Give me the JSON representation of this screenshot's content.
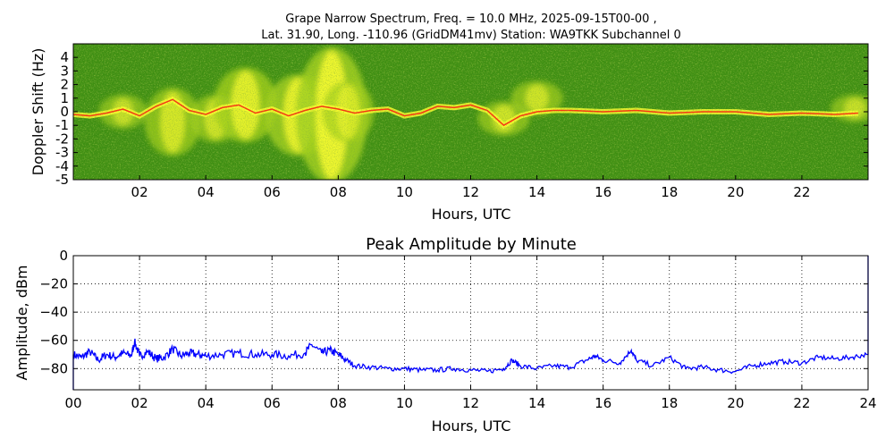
{
  "chart_data": [
    {
      "type": "heatmap",
      "title_line1": "Grape Narrow Spectrum, Freq. = 10.0 MHz, 2025-09-15T00-00 ,",
      "title_line2": "Lat.  31.90, Long. -110.96 (GridDM41mv) Station: WA9TKK Subchannel 0",
      "xlabel": "Hours, UTC",
      "ylabel": "Doppler Shift (Hz)",
      "xlim": [
        0,
        24
      ],
      "ylim": [
        -5,
        5
      ],
      "x_ticks": [
        "02",
        "04",
        "06",
        "08",
        "10",
        "12",
        "14",
        "16",
        "18",
        "20",
        "22"
      ],
      "y_ticks": [
        "4",
        "3",
        "2",
        "1",
        "0",
        "-1",
        "-2",
        "-3",
        "-4",
        "-5"
      ],
      "colors": {
        "background": "#3e8f12",
        "mid": "#a6d21d",
        "high": "#ffff30",
        "peak": "#ff3010"
      },
      "trace": {
        "hours": [
          0,
          0.5,
          1,
          1.5,
          2,
          2.5,
          3,
          3.5,
          4,
          4.5,
          5,
          5.5,
          6,
          6.5,
          7,
          7.5,
          8,
          8.5,
          9,
          9.5,
          10,
          10.5,
          11,
          11.5,
          12,
          12.5,
          13,
          13.5,
          14,
          14.5,
          15,
          16,
          17,
          18,
          19,
          20,
          21,
          22,
          23,
          23.7
        ],
        "doppler_hz": [
          -0.2,
          -0.3,
          -0.1,
          0.2,
          -0.3,
          0.4,
          0.9,
          0.1,
          -0.2,
          0.3,
          0.5,
          -0.1,
          0.2,
          -0.3,
          0.1,
          0.4,
          0.2,
          -0.1,
          0.1,
          0.2,
          -0.3,
          -0.1,
          0.4,
          0.3,
          0.5,
          0.1,
          -1.0,
          -0.3,
          0.0,
          0.1,
          0.1,
          0.0,
          0.1,
          -0.1,
          0.0,
          0.0,
          -0.2,
          -0.1,
          -0.2,
          -0.1
        ]
      },
      "disturbances": [
        {
          "hour": 1.5,
          "low_hz": -1,
          "high_hz": 1,
          "strength": 0.4
        },
        {
          "hour": 3.0,
          "low_hz": -3,
          "high_hz": 1.5,
          "strength": 0.6
        },
        {
          "hour": 4.3,
          "low_hz": -2,
          "high_hz": 1,
          "strength": 0.5
        },
        {
          "hour": 5.2,
          "low_hz": -2,
          "high_hz": 3,
          "strength": 0.8
        },
        {
          "hour": 6.8,
          "low_hz": -3,
          "high_hz": 2.5,
          "strength": 0.9
        },
        {
          "hour": 7.8,
          "low_hz": -5,
          "high_hz": 4.5,
          "strength": 1.0
        },
        {
          "hour": 8.3,
          "low_hz": -2,
          "high_hz": 2,
          "strength": 0.5
        },
        {
          "hour": 13.0,
          "low_hz": -1.5,
          "high_hz": 0.5,
          "strength": 0.5
        },
        {
          "hour": 14.0,
          "low_hz": 0,
          "high_hz": 2,
          "strength": 0.5
        },
        {
          "hour": 23.6,
          "low_hz": -0.5,
          "high_hz": 1,
          "strength": 0.4
        }
      ]
    },
    {
      "type": "line",
      "title": "Peak Amplitude by Minute",
      "xlabel": "Hours, UTC",
      "ylabel": "Amplitude, dBm",
      "xlim": [
        0,
        24
      ],
      "ylim": [
        -95,
        0
      ],
      "grid": true,
      "x_ticks": [
        "00",
        "02",
        "04",
        "06",
        "08",
        "10",
        "12",
        "14",
        "16",
        "18",
        "20",
        "22",
        "24"
      ],
      "y_ticks": [
        "0",
        "−20",
        "−40",
        "−60",
        "−80"
      ],
      "y_tick_values": [
        0,
        -20,
        -40,
        -60,
        -80
      ],
      "line_color": "#0000ff",
      "series": [
        {
          "x": [
            0,
            0.25,
            0.5,
            0.75,
            1,
            1.25,
            1.5,
            1.75,
            1.85,
            2,
            2.25,
            2.5,
            2.75,
            3,
            3.25,
            3.5,
            3.75,
            4,
            4.5,
            5,
            5.5,
            6,
            6.5,
            7,
            7.2,
            7.5,
            7.75,
            8,
            8.25,
            8.5,
            9,
            9.5,
            10,
            10.5,
            11,
            11.5,
            12,
            12.5,
            13,
            13.25,
            13.5,
            14,
            14.5,
            15,
            15.5,
            15.75,
            16,
            16.5,
            16.85,
            17,
            17.5,
            18,
            18.5,
            19,
            19.5,
            20,
            20.5,
            21,
            21.5,
            22,
            22.5,
            23,
            23.5,
            23.95
          ],
          "y": [
            -70,
            -72,
            -68,
            -74,
            -70,
            -72,
            -69,
            -71,
            -61,
            -71,
            -68,
            -73,
            -72,
            -66,
            -71,
            -69,
            -70,
            -71,
            -70,
            -69,
            -70,
            -70,
            -71,
            -69,
            -63,
            -69,
            -67,
            -70,
            -74,
            -78,
            -79,
            -80,
            -80,
            -81,
            -81,
            -80,
            -81,
            -82,
            -80,
            -74,
            -78,
            -80,
            -78,
            -79,
            -74,
            -71,
            -74,
            -76,
            -67,
            -74,
            -78,
            -72,
            -80,
            -79,
            -81,
            -82,
            -78,
            -76,
            -75,
            -76,
            -72,
            -73,
            -72,
            -70
          ]
        }
      ]
    }
  ]
}
